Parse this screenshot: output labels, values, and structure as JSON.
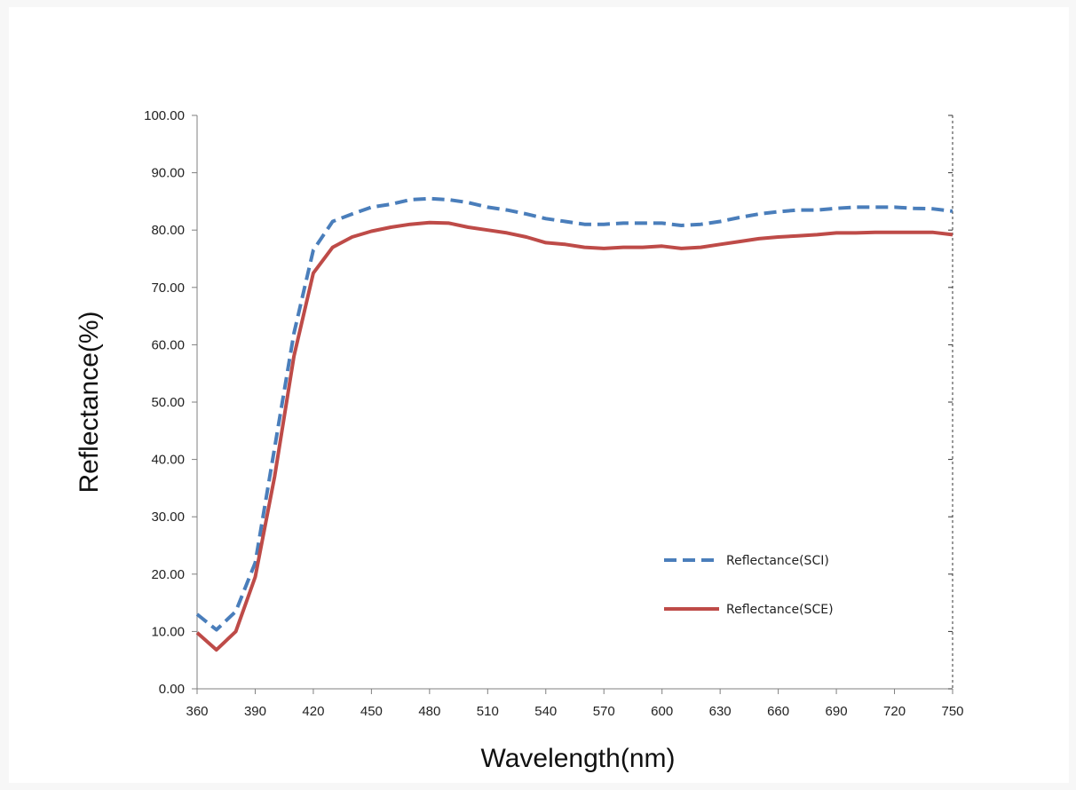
{
  "chart_data": {
    "type": "line",
    "title": "",
    "xlabel": "Wavelength(nm)",
    "ylabel": "Reflectance(%)",
    "xlim": [
      360,
      750
    ],
    "ylim": [
      0,
      100
    ],
    "x_ticks": [
      "360",
      "390",
      "420",
      "450",
      "480",
      "510",
      "540",
      "570",
      "600",
      "630",
      "660",
      "690",
      "720",
      "750"
    ],
    "y_ticks": [
      "0.00",
      "10.00",
      "20.00",
      "30.00",
      "40.00",
      "50.00",
      "60.00",
      "70.00",
      "80.00",
      "90.00",
      "100.00"
    ],
    "grid": false,
    "legend_position": "bottom-right",
    "x": [
      360,
      370,
      380,
      390,
      400,
      410,
      420,
      430,
      440,
      450,
      460,
      470,
      480,
      490,
      500,
      510,
      520,
      530,
      540,
      550,
      560,
      570,
      580,
      590,
      600,
      610,
      620,
      630,
      640,
      650,
      660,
      670,
      680,
      690,
      700,
      710,
      720,
      730,
      740,
      750
    ],
    "series": [
      {
        "name": "Reflectance(SCI)",
        "color": "#4a7ebb",
        "style": "dashed",
        "values": [
          13.0,
          10.3,
          13.5,
          22.0,
          42.0,
          62.0,
          76.5,
          81.5,
          82.8,
          84.0,
          84.5,
          85.3,
          85.5,
          85.3,
          84.8,
          84.0,
          83.5,
          82.8,
          82.0,
          81.5,
          81.0,
          81.0,
          81.2,
          81.2,
          81.2,
          80.8,
          81.0,
          81.5,
          82.2,
          82.8,
          83.2,
          83.5,
          83.5,
          83.8,
          84.0,
          84.0,
          84.0,
          83.8,
          83.7,
          83.3
        ]
      },
      {
        "name": "Reflectance(SCE)",
        "color": "#be4b48",
        "style": "solid",
        "values": [
          9.8,
          6.8,
          10.0,
          19.5,
          37.0,
          58.0,
          72.5,
          77.0,
          78.8,
          79.8,
          80.5,
          81.0,
          81.3,
          81.2,
          80.5,
          80.0,
          79.5,
          78.8,
          77.8,
          77.5,
          77.0,
          76.8,
          77.0,
          77.0,
          77.2,
          76.8,
          77.0,
          77.5,
          78.0,
          78.5,
          78.8,
          79.0,
          79.2,
          79.5,
          79.5,
          79.6,
          79.6,
          79.6,
          79.6,
          79.2
        ]
      }
    ]
  }
}
